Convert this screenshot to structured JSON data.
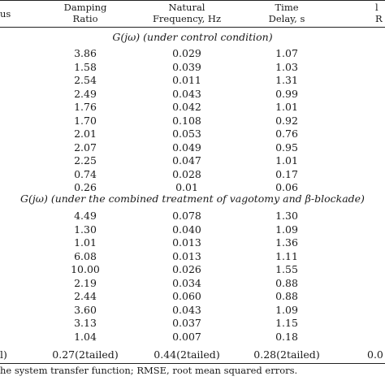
{
  "header": {
    "col0": "us",
    "damping": [
      "Damping",
      "Ratio"
    ],
    "freq": [
      "Natural",
      "Frequency, Hz"
    ],
    "delay": [
      "Time",
      "Delay, s"
    ],
    "col4": [
      "l",
      "R"
    ]
  },
  "section1": {
    "title": "G(jω) (under control condition)",
    "rows": [
      [
        "3.86",
        "0.029",
        "1.07"
      ],
      [
        "1.58",
        "0.039",
        "1.03"
      ],
      [
        "2.54",
        "0.011",
        "1.31"
      ],
      [
        "2.49",
        "0.043",
        "0.99"
      ],
      [
        "1.76",
        "0.042",
        "1.01"
      ],
      [
        "1.70",
        "0.108",
        "0.92"
      ],
      [
        "2.01",
        "0.053",
        "0.76"
      ],
      [
        "2.07",
        "0.049",
        "0.95"
      ],
      [
        "2.25",
        "0.047",
        "1.01"
      ],
      [
        "0.74",
        "0.028",
        "0.17"
      ],
      [
        "0.26",
        "0.01",
        "0.06"
      ]
    ]
  },
  "section2": {
    "title": "G(jω) (under the combined treatment of vagotomy and β-blockade)",
    "rows": [
      [
        "4.49",
        "0.078",
        "1.30"
      ],
      [
        "1.30",
        "0.040",
        "1.09"
      ],
      [
        "1.01",
        "0.013",
        "1.36"
      ],
      [
        "6.08",
        "0.013",
        "1.11"
      ],
      [
        "10.00",
        "0.026",
        "1.55"
      ],
      [
        "2.19",
        "0.034",
        "0.88"
      ],
      [
        "2.44",
        "0.060",
        "0.88"
      ],
      [
        "3.60",
        "0.043",
        "1.09"
      ],
      [
        "3.13",
        "0.037",
        "1.15"
      ],
      [
        "1.04",
        "0.007",
        "0.18"
      ]
    ]
  },
  "stats": {
    "col0": "l)",
    "damping": "0.27(2tailed)",
    "freq": "0.44(2tailed)",
    "delay": "0.28(2tailed)",
    "col4": "0.0"
  },
  "footnote": "he system transfer function; RMSE, root mean squared errors."
}
